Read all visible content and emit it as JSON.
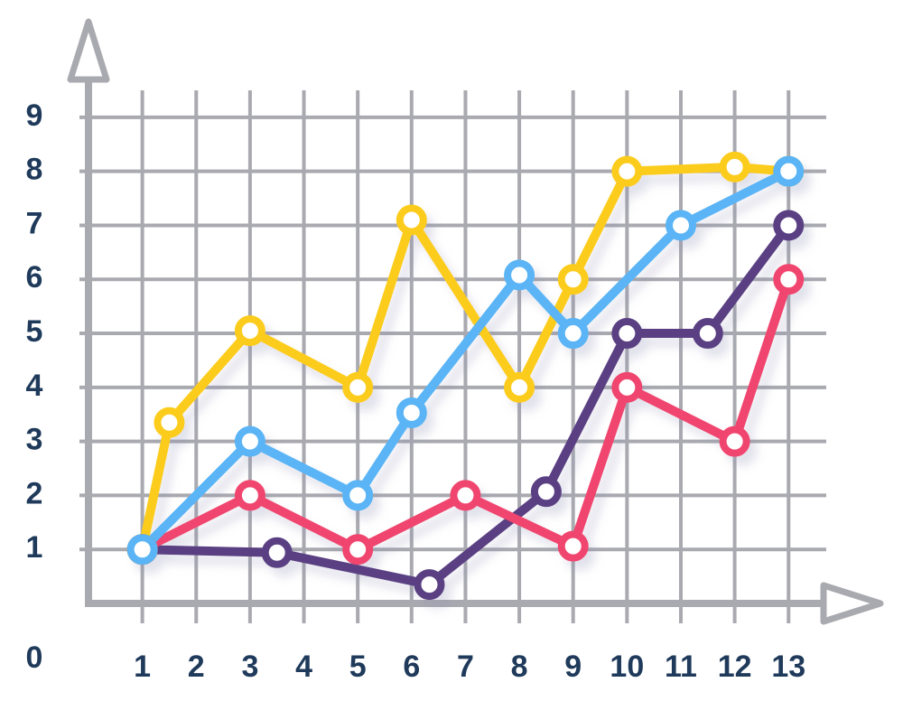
{
  "chart_data": {
    "type": "line",
    "xlim": [
      0,
      13.7
    ],
    "ylim": [
      0,
      9.5
    ],
    "xticks": [
      1,
      2,
      3,
      4,
      5,
      6,
      7,
      8,
      9,
      10,
      11,
      12,
      13
    ],
    "yticks": [
      0,
      1,
      2,
      3,
      4,
      5,
      6,
      7,
      8,
      9
    ],
    "grid": true,
    "series": [
      {
        "color": "#5a3f82",
        "x": [
          1,
          3.5,
          6.33,
          8.5,
          10,
          11.5,
          13
        ],
        "values": [
          1,
          0.94,
          0.35,
          2.07,
          5,
          5,
          7
        ]
      },
      {
        "color": "#f0456e",
        "x": [
          1,
          3,
          5,
          7,
          9,
          10,
          12,
          13
        ],
        "values": [
          1,
          2,
          1,
          2,
          1.06,
          4,
          3,
          6
        ]
      },
      {
        "color": "#fccc1a",
        "x": [
          1,
          1.5,
          3,
          5,
          6,
          8,
          9,
          10,
          12,
          13
        ],
        "values": [
          1,
          3.35,
          5.05,
          4,
          7.1,
          4,
          6,
          8,
          8.08,
          8
        ]
      },
      {
        "color": "#5ab4f5",
        "x": [
          1,
          3,
          5,
          6,
          8,
          9,
          11,
          13
        ],
        "values": [
          1,
          3,
          2,
          3.53,
          6.08,
          5,
          7,
          8
        ]
      }
    ]
  }
}
